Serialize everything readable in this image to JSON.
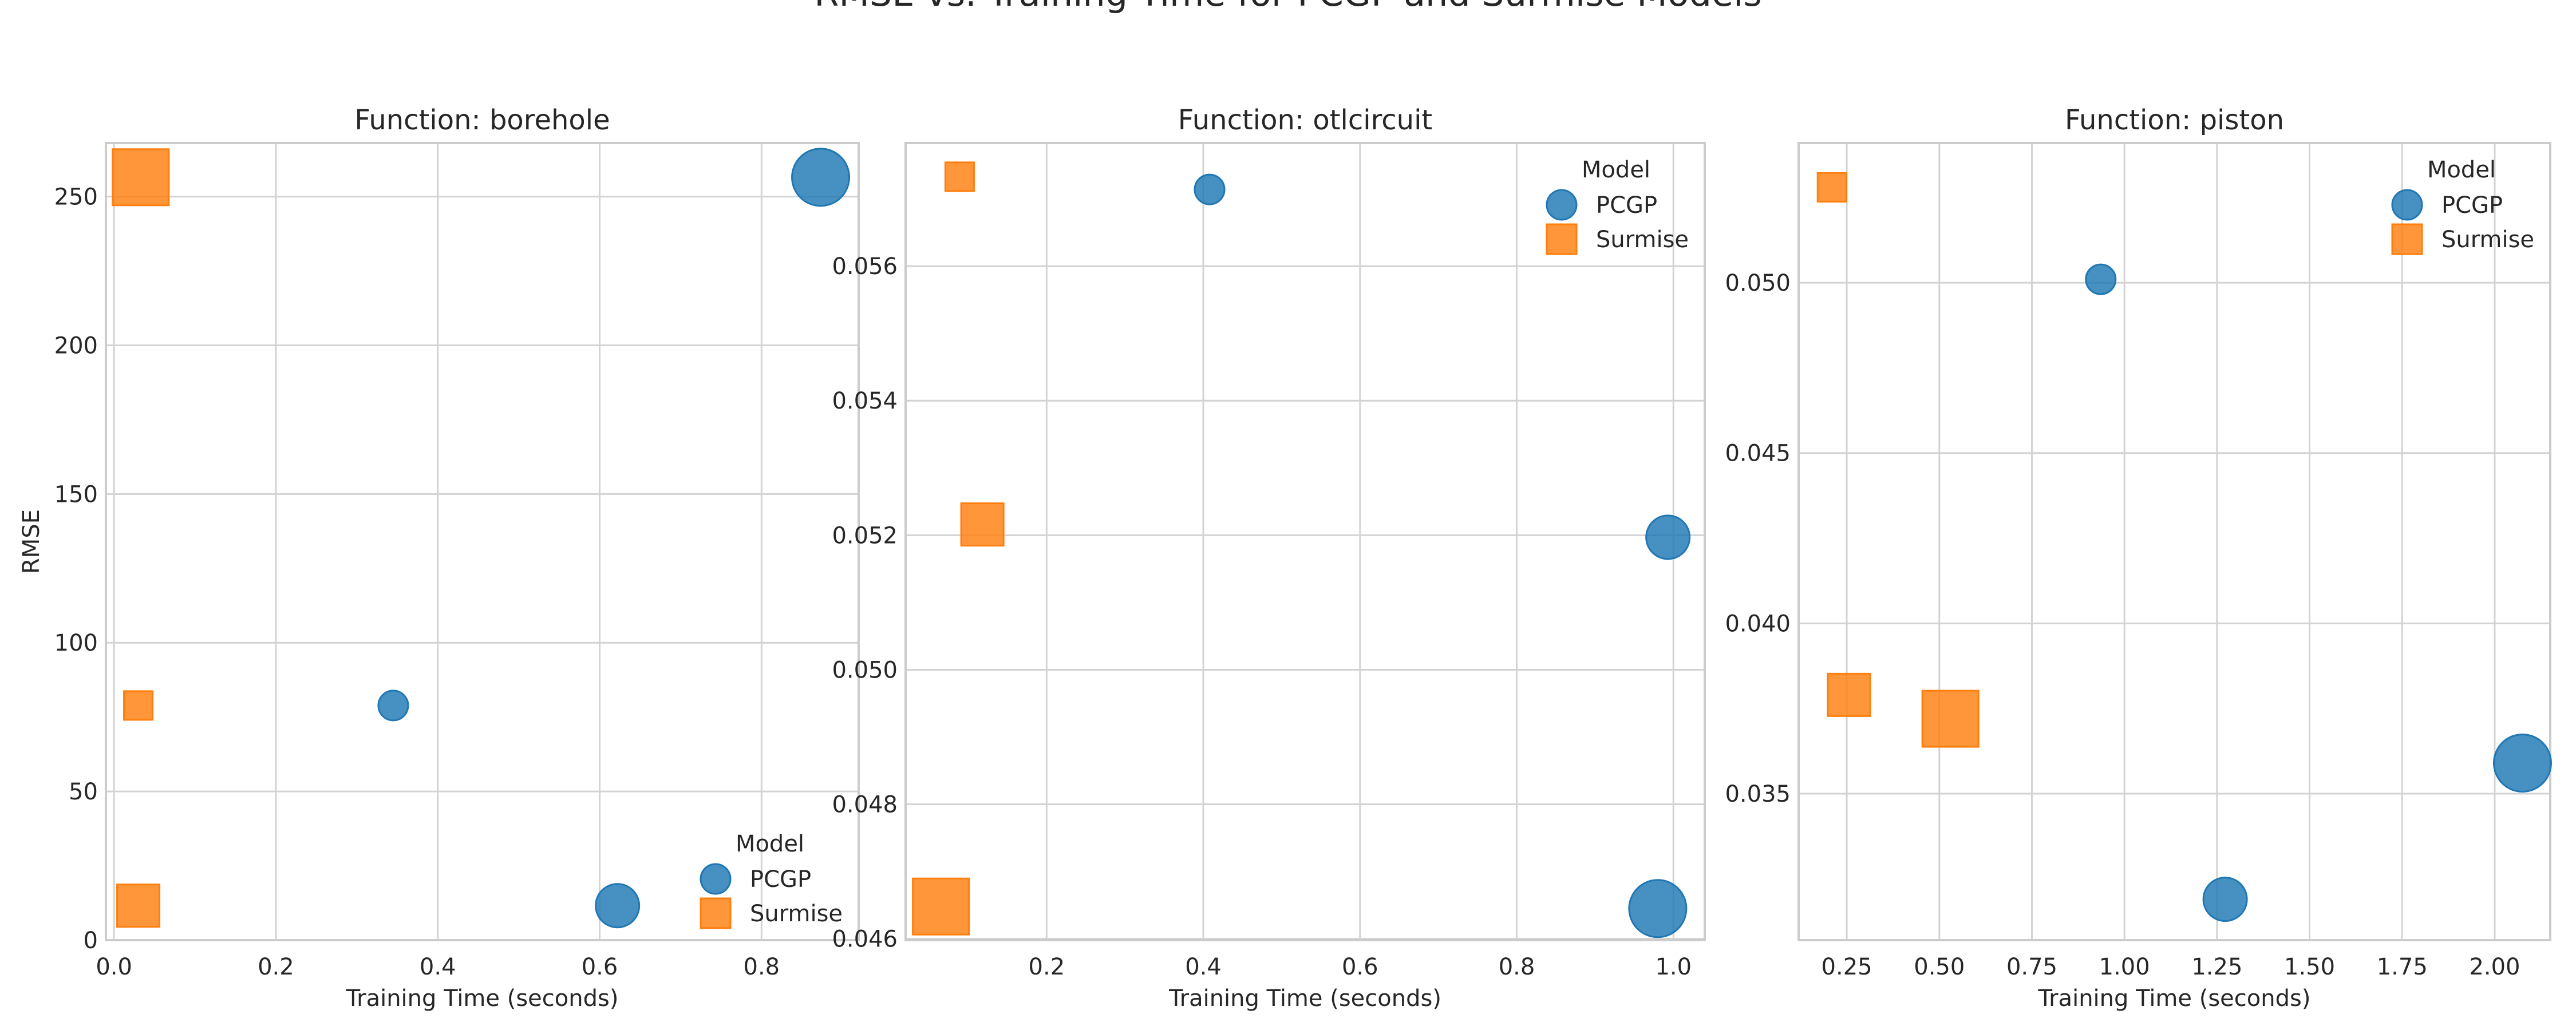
{
  "figure": {
    "suptitle": "RMSE vs. Training Time for PCGP and Surmise Models"
  },
  "colors": {
    "PCGP": "#1f77b4",
    "Surmise": "#ff7f0e",
    "grid": "#d3d3d3",
    "spine": "#cccccc"
  },
  "chart_data": [
    {
      "type": "scatter",
      "title": "Function: borehole",
      "xlabel": "Training Time (seconds)",
      "ylabel": "RMSE",
      "xlim": [
        -0.01,
        0.92
      ],
      "ylim": [
        0,
        268
      ],
      "xticks": [
        0.0,
        0.2,
        0.4,
        0.6,
        0.8
      ],
      "xtick_labels": [
        "0.0",
        "0.2",
        "0.4",
        "0.6",
        "0.8"
      ],
      "yticks": [
        0,
        50,
        100,
        150,
        200,
        250
      ],
      "ytick_labels": [
        "0",
        "50",
        "100",
        "150",
        "200",
        "250"
      ],
      "grid": true,
      "legend": {
        "title": "Model",
        "placement": "lower-right",
        "entries": [
          "PCGP",
          "Surmise"
        ]
      },
      "series": [
        {
          "name": "PCGP",
          "marker": "circle",
          "points": [
            {
              "x": 0.345,
              "y": 78.9,
              "size": 1
            },
            {
              "x": 0.622,
              "y": 11.6,
              "size": 2
            },
            {
              "x": 0.873,
              "y": 256.5,
              "size": 3
            }
          ]
        },
        {
          "name": "Surmise",
          "marker": "square",
          "points": [
            {
              "x": 0.03,
              "y": 78.9,
              "size": 1
            },
            {
              "x": 0.03,
              "y": 11.6,
              "size": 2
            },
            {
              "x": 0.033,
              "y": 256.5,
              "size": 3
            }
          ]
        }
      ]
    },
    {
      "type": "scatter",
      "title": "Function: otlcircuit",
      "xlabel": "Training Time (seconds)",
      "ylabel": "",
      "xlim": [
        0.02,
        1.04
      ],
      "ylim": [
        0.04598,
        0.05783
      ],
      "xticks": [
        0.2,
        0.4,
        0.6,
        0.8,
        1.0
      ],
      "xtick_labels": [
        "0.2",
        "0.4",
        "0.6",
        "0.8",
        "1.0"
      ],
      "yticks": [
        0.046,
        0.048,
        0.05,
        0.052,
        0.054,
        0.056
      ],
      "ytick_labels": [
        "0.046",
        "0.048",
        "0.050",
        "0.052",
        "0.054",
        "0.056"
      ],
      "grid": true,
      "legend": {
        "title": "Model",
        "placement": "upper-right",
        "entries": [
          "PCGP",
          "Surmise"
        ]
      },
      "series": [
        {
          "name": "PCGP",
          "marker": "circle",
          "points": [
            {
              "x": 0.408,
              "y": 0.05714,
              "size": 1
            },
            {
              "x": 0.993,
              "y": 0.05197,
              "size": 2
            },
            {
              "x": 0.98,
              "y": 0.04645,
              "size": 3
            }
          ]
        },
        {
          "name": "Surmise",
          "marker": "square",
          "points": [
            {
              "x": 0.089,
              "y": 0.05733,
              "size": 1
            },
            {
              "x": 0.118,
              "y": 0.05216,
              "size": 2
            },
            {
              "x": 0.065,
              "y": 0.04648,
              "size": 3
            }
          ]
        }
      ]
    },
    {
      "type": "scatter",
      "title": "Function: piston",
      "xlabel": "Training Time (seconds)",
      "ylabel": "",
      "xlim": [
        0.12,
        2.15
      ],
      "ylim": [
        0.0307,
        0.0541
      ],
      "xticks": [
        0.25,
        0.5,
        0.75,
        1.0,
        1.25,
        1.5,
        1.75,
        2.0
      ],
      "xtick_labels": [
        "0.25",
        "0.50",
        "0.75",
        "1.00",
        "1.25",
        "1.50",
        "1.75",
        "2.00"
      ],
      "yticks": [
        0.035,
        0.04,
        0.045,
        0.05
      ],
      "ytick_labels": [
        "0.035",
        "0.040",
        "0.045",
        "0.050"
      ],
      "grid": true,
      "legend": {
        "title": "Model",
        "placement": "upper-right",
        "entries": [
          "PCGP",
          "Surmise"
        ]
      },
      "series": [
        {
          "name": "PCGP",
          "marker": "circle",
          "points": [
            {
              "x": 0.936,
              "y": 0.0501,
              "size": 1
            },
            {
              "x": 1.272,
              "y": 0.0319,
              "size": 2
            },
            {
              "x": 2.075,
              "y": 0.0359,
              "size": 3
            }
          ]
        },
        {
          "name": "Surmise",
          "marker": "square",
          "points": [
            {
              "x": 0.21,
              "y": 0.0528,
              "size": 1
            },
            {
              "x": 0.256,
              "y": 0.0379,
              "size": 2
            },
            {
              "x": 0.53,
              "y": 0.0372,
              "size": 3
            }
          ]
        }
      ]
    }
  ]
}
